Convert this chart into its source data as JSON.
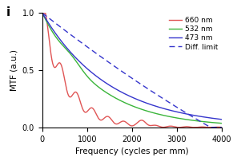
{
  "title": "",
  "panel_label": "i",
  "xlabel": "Frequency (cycles per mm)",
  "ylabel": "MTF (a.u.)",
  "xlim": [
    0,
    4000
  ],
  "ylim": [
    0.0,
    1.0
  ],
  "xticks": [
    0,
    1000,
    2000,
    3000,
    4000
  ],
  "yticks": [
    0.0,
    0.5,
    1.0
  ],
  "legend": [
    {
      "label": "660 nm",
      "color": "#e05555",
      "linestyle": "-"
    },
    {
      "label": "532 nm",
      "color": "#3ab53a",
      "linestyle": "-"
    },
    {
      "label": "473 nm",
      "color": "#3535cc",
      "linestyle": "-"
    },
    {
      "label": "Diff. limit",
      "color": "#3535cc",
      "linestyle": "--"
    }
  ],
  "background_color": "#ffffff",
  "figsize": [
    2.96,
    2.02
  ],
  "dpi": 100
}
